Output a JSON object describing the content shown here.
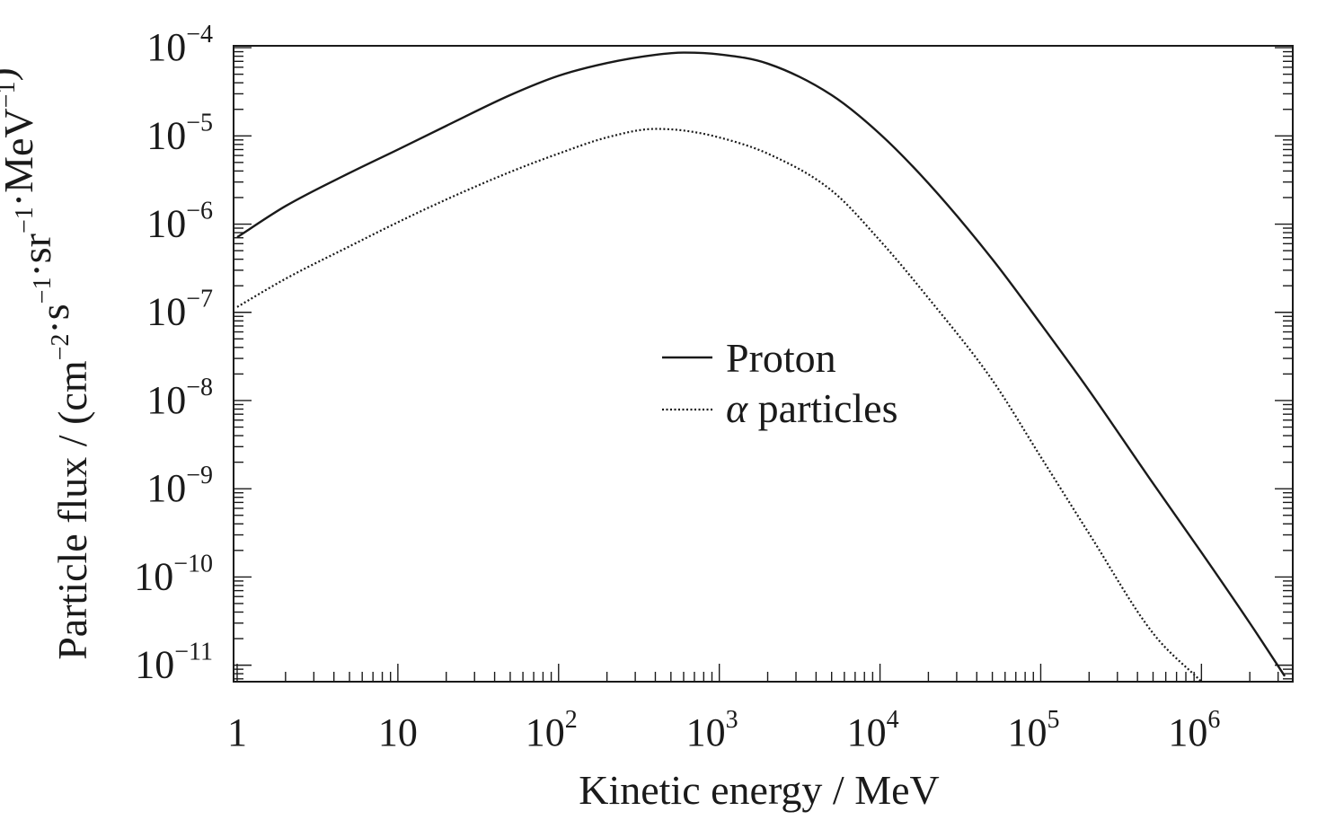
{
  "chart_data": {
    "type": "line",
    "xlabel": "Kinetic energy / MeV",
    "ylabel": {
      "prefix": "Particle flux / (cm",
      "parts": [
        {
          "text": "cm",
          "sup": "−2"
        },
        {
          "text": "·s",
          "sup": "−1"
        },
        {
          "text": "·sr",
          "sup": "−1"
        },
        {
          "text": "·MeV",
          "sup": "−1"
        }
      ],
      "suffix": ")"
    },
    "x_scale": "log",
    "y_scale": "log",
    "xlim": [
      0.95,
      3700000
    ],
    "ylim": [
      6.5e-12,
      0.000105
    ],
    "grid": false,
    "legend_position": "center-right",
    "x_ticks": [
      {
        "value": 1,
        "base": "1",
        "exp": ""
      },
      {
        "value": 10,
        "base": "10",
        "exp": ""
      },
      {
        "value": 100,
        "base": "10",
        "exp": "2"
      },
      {
        "value": 1000,
        "base": "10",
        "exp": "3"
      },
      {
        "value": 10000,
        "base": "10",
        "exp": "4"
      },
      {
        "value": 100000,
        "base": "10",
        "exp": "5"
      },
      {
        "value": 1000000,
        "base": "10",
        "exp": "6"
      }
    ],
    "y_ticks": [
      {
        "value": 0.0001,
        "base": "10",
        "exp": "−4"
      },
      {
        "value": 1e-05,
        "base": "10",
        "exp": "−5"
      },
      {
        "value": 1e-06,
        "base": "10",
        "exp": "−6"
      },
      {
        "value": 1e-07,
        "base": "10",
        "exp": "−7"
      },
      {
        "value": 1e-08,
        "base": "10",
        "exp": "−8"
      },
      {
        "value": 1e-09,
        "base": "10",
        "exp": "−9"
      },
      {
        "value": 1e-10,
        "base": "10",
        "exp": "−10"
      },
      {
        "value": 1e-11,
        "base": "10",
        "exp": "−11"
      }
    ],
    "series": [
      {
        "name": "Proton",
        "style": "solid",
        "color": "#1a1a1a",
        "points": [
          [
            1,
            7.1e-07
          ],
          [
            2,
            1.6e-06
          ],
          [
            5,
            3.8e-06
          ],
          [
            10,
            7e-06
          ],
          [
            20,
            1.3e-05
          ],
          [
            50,
            2.9e-05
          ],
          [
            100,
            4.8e-05
          ],
          [
            200,
            6.7e-05
          ],
          [
            400,
            8.3e-05
          ],
          [
            600,
            8.8e-05
          ],
          [
            1000,
            8.4e-05
          ],
          [
            2000,
            6.6e-05
          ],
          [
            5000,
            2.9e-05
          ],
          [
            10000,
            1.05e-05
          ],
          [
            20000,
            2.9e-06
          ],
          [
            50000,
            4e-07
          ],
          [
            100000,
            7.4e-08
          ],
          [
            200000,
            1.3e-08
          ],
          [
            500000,
            1.15e-09
          ],
          [
            1000000,
            1.9e-10
          ],
          [
            2000000,
            3e-11
          ],
          [
            3300000,
            7.5e-12
          ]
        ]
      },
      {
        "name": "α particles",
        "style": "dotted",
        "color": "#1a1a1a",
        "points": [
          [
            1,
            1.15e-07
          ],
          [
            2,
            2.4e-07
          ],
          [
            5,
            5.6e-07
          ],
          [
            10,
            1.05e-06
          ],
          [
            20,
            1.9e-06
          ],
          [
            50,
            3.9e-06
          ],
          [
            100,
            6.3e-06
          ],
          [
            200,
            9.6e-06
          ],
          [
            400,
            1.2e-05
          ],
          [
            600,
            1.15e-05
          ],
          [
            1000,
            9.6e-06
          ],
          [
            2000,
            6.3e-06
          ],
          [
            5000,
            2.4e-06
          ],
          [
            10000,
            6.5e-07
          ],
          [
            20000,
            1.45e-07
          ],
          [
            50000,
            1.7e-08
          ],
          [
            100000,
            2.3e-09
          ],
          [
            200000,
            3.1e-10
          ],
          [
            500000,
            2.3e-11
          ],
          [
            1000000,
            6.5e-12
          ]
        ]
      }
    ]
  }
}
